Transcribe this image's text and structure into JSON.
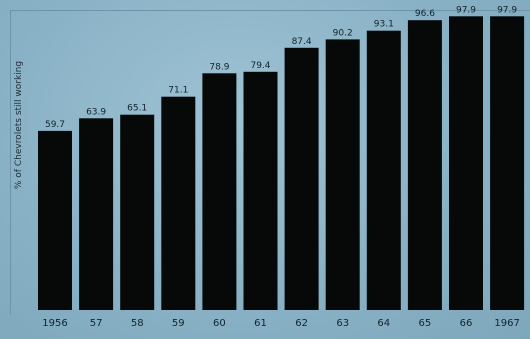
{
  "chart_data": {
    "type": "bar",
    "categories": [
      "1956",
      "57",
      "58",
      "59",
      "60",
      "61",
      "62",
      "63",
      "64",
      "65",
      "66",
      "1967"
    ],
    "values": [
      59.7,
      63.9,
      65.1,
      71.1,
      78.9,
      79.4,
      87.4,
      90.2,
      93.1,
      96.6,
      97.9,
      97.9
    ],
    "value_labels": [
      "59.7",
      "63.9",
      "65.1",
      "71.1",
      "78.9",
      "79.4",
      "87.4",
      "90.2",
      "93.1",
      "96.6",
      "97.9",
      "97.9"
    ],
    "title": "",
    "xlabel": "",
    "ylabel": "% of Chevrolets still working",
    "ylim": [
      0,
      100
    ],
    "grid": false,
    "colors": {
      "bar": "#070808",
      "background": "#8bb3c8"
    }
  }
}
